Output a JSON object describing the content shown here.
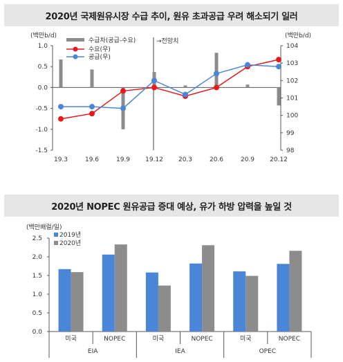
{
  "chart_data": [
    {
      "type": "bar+line",
      "title": "2020년 국제원유시장 수급 추이, 원유 초과공급 우려 해소되기 일러",
      "y_left_label": "(백만b/d)",
      "y_right_label": "(백만b/d)",
      "ylim_left": [
        -1.5,
        1.0
      ],
      "ylim_right": [
        98,
        104
      ],
      "yticks_left": [
        "1.0",
        "0.5",
        "0.0",
        "-0.5",
        "-1.0",
        "-1.5"
      ],
      "yticks_right": [
        "104",
        "103",
        "102",
        "101",
        "100",
        "99",
        "98"
      ],
      "x_tick_labels": [
        "19.3",
        "19.6",
        "19.9",
        "19.12",
        "20.3",
        "20.6",
        "20.9",
        "20.12"
      ],
      "forecast_label": "→전망치",
      "bar_series": {
        "name": "수급차(공급-수요)",
        "color": "#8c8c8c",
        "values": [
          0.67,
          0.43,
          -1.0,
          0.37,
          0.05,
          0.83,
          0.07,
          -0.43
        ]
      },
      "line_series": [
        {
          "name": "수요(우)",
          "color": "#e8191c",
          "values": [
            99.8,
            100.1,
            101.4,
            101.6,
            101.1,
            101.6,
            102.8,
            103.2
          ]
        },
        {
          "name": "공급(우)",
          "color": "#4a86d8",
          "values": [
            100.5,
            100.5,
            100.4,
            102.0,
            101.2,
            102.4,
            102.9,
            102.8
          ]
        }
      ]
    },
    {
      "type": "bar",
      "title": "2020년 NOPEC 원유공급 증대 예상, 유가 하방 압력을 높일 것",
      "ylabel": "(백만배럴/일)",
      "ylim": [
        0,
        2.5
      ],
      "yticks": [
        "2.5",
        "2.0",
        "1.5",
        "1.0",
        "0.5",
        "0.0"
      ],
      "categories": [
        "미국",
        "NOPEC",
        "미국",
        "NOPEC",
        "미국",
        "NOPEC"
      ],
      "groups": [
        "EIA",
        "IEA",
        "OPEC"
      ],
      "series": [
        {
          "name": "2019년",
          "color": "#4a86d8",
          "values": [
            1.67,
            2.06,
            1.58,
            1.82,
            1.61,
            1.81
          ]
        },
        {
          "name": "2020년",
          "color": "#8c8c8c",
          "values": [
            1.59,
            2.33,
            1.23,
            2.31,
            1.49,
            2.16
          ]
        }
      ]
    }
  ]
}
